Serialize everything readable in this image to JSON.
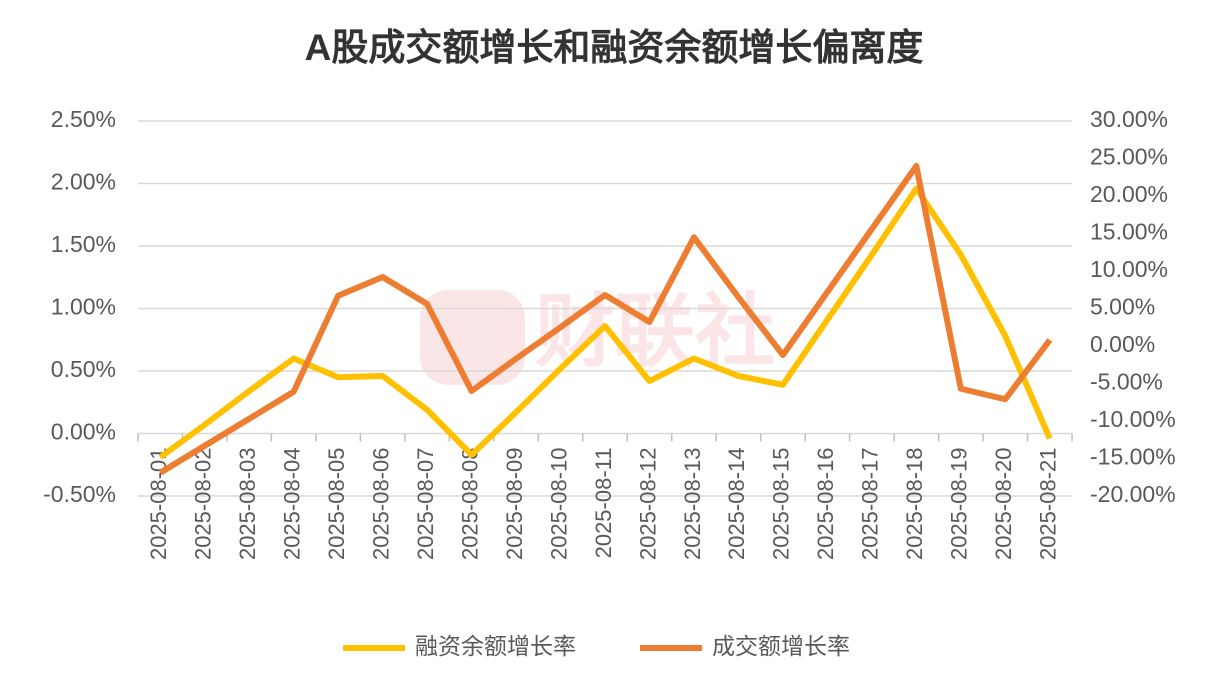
{
  "chart_data": {
    "type": "line",
    "title": "A股成交额增长和融资余额增长偏离度",
    "watermark": "财联社",
    "categories": [
      "2025-08-01",
      "2025-08-02",
      "2025-08-03",
      "2025-08-04",
      "2025-08-05",
      "2025-08-06",
      "2025-08-07",
      "2025-08-08",
      "2025-08-09",
      "2025-08-10",
      "2025-08-11",
      "2025-08-12",
      "2025-08-13",
      "2025-08-14",
      "2025-08-15",
      "2025-08-16",
      "2025-08-17",
      "2025-08-18",
      "2025-08-19",
      "2025-08-20",
      "2025-08-21"
    ],
    "series": [
      {
        "name": "融资余额增长率",
        "color": "#ffc000",
        "values": [
          -0.19,
          0.07,
          0.34,
          0.6,
          0.45,
          0.46,
          0.19,
          -0.17,
          0.17,
          0.52,
          0.86,
          0.42,
          0.6,
          0.46,
          0.39,
          0.91,
          1.43,
          1.96,
          1.43,
          0.78,
          -0.04
        ]
      },
      {
        "name": "成交额增长率",
        "color": "#ed7d31",
        "axis": "y2",
        "values": [
          -16.9,
          -13.3,
          -9.7,
          -6.1,
          6.7,
          9.2,
          5.6,
          -6.0,
          -1.7,
          2.5,
          6.8,
          3.2,
          14.5,
          6.5,
          -1.2,
          7.2,
          15.6,
          24.0,
          -5.7,
          -7.1,
          0.8
        ]
      }
    ],
    "ylim": [
      -0.5,
      2.5
    ],
    "yticks": [
      {
        "value": -0.5,
        "label": "-0.50%"
      },
      {
        "value": 0,
        "label": "0.00%"
      },
      {
        "value": 0.5,
        "label": "0.50%"
      },
      {
        "value": 1,
        "label": "1.00%"
      },
      {
        "value": 1.5,
        "label": "1.50%"
      },
      {
        "value": 2,
        "label": "2.00%"
      },
      {
        "value": 2.5,
        "label": "2.50%"
      }
    ],
    "y2lim": [
      -20,
      30
    ],
    "y2ticks": [
      {
        "value": -20,
        "label": "-20.00%"
      },
      {
        "value": -15,
        "label": "-15.00%"
      },
      {
        "value": -10,
        "label": "-10.00%"
      },
      {
        "value": -5,
        "label": "-5.00%"
      },
      {
        "value": 0,
        "label": "0.00%"
      },
      {
        "value": 5,
        "label": "5.00%"
      },
      {
        "value": 10,
        "label": "10.00%"
      },
      {
        "value": 15,
        "label": "15.00%"
      },
      {
        "value": 20,
        "label": "20.00%"
      },
      {
        "value": 25,
        "label": "25.00%"
      },
      {
        "value": 30,
        "label": "30.00%"
      }
    ],
    "grid": true
  }
}
